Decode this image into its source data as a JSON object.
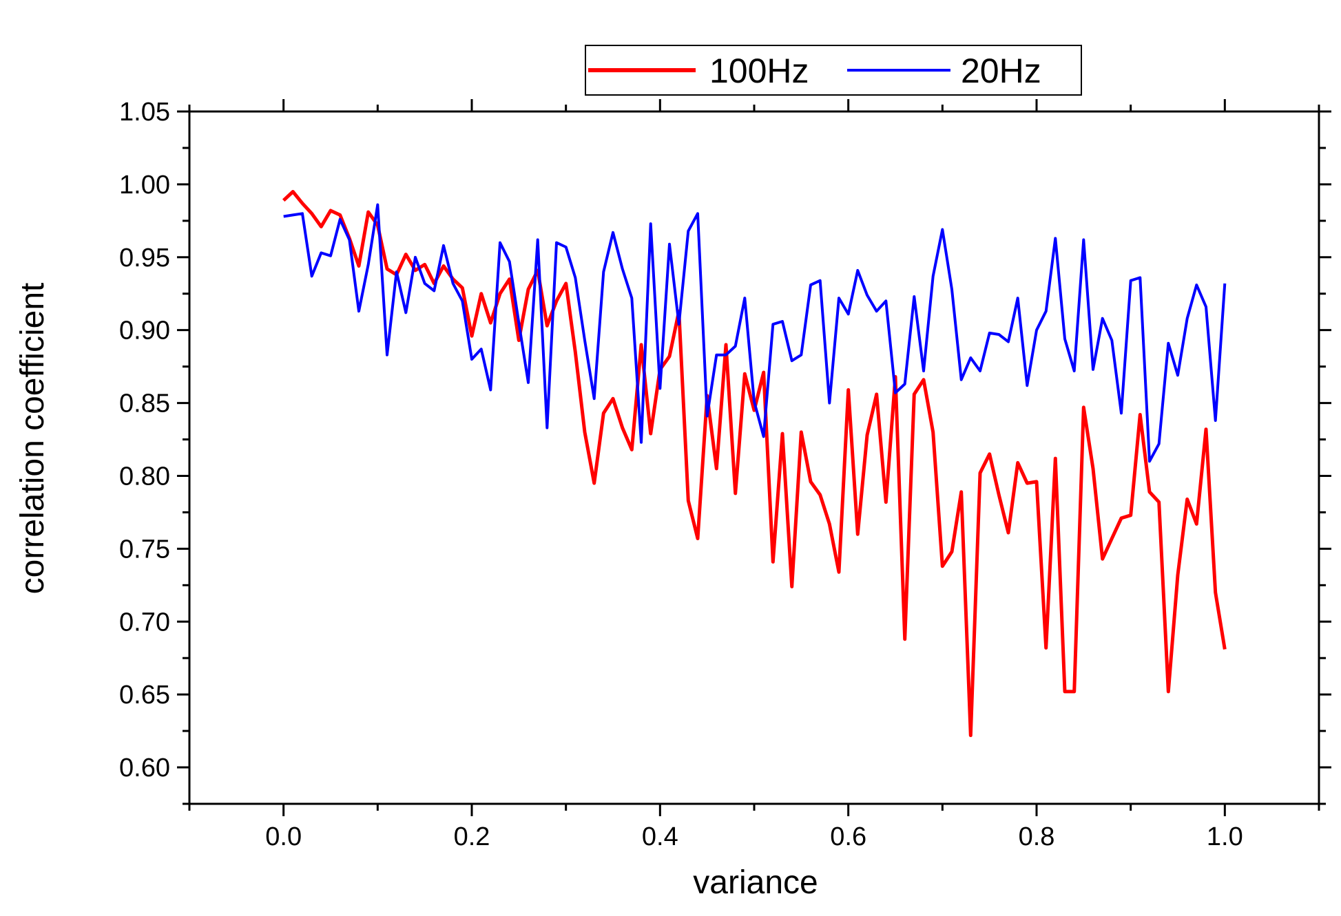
{
  "chart_data": {
    "type": "line",
    "title": "",
    "xlabel": "variance",
    "ylabel": "correlation coefficient",
    "xlim": [
      -0.1,
      1.1
    ],
    "ylim": [
      0.575,
      1.05
    ],
    "x_ticks": [
      0.0,
      0.2,
      0.4,
      0.6,
      0.8,
      1.0
    ],
    "x_tick_labels": [
      "0.0",
      "0.2",
      "0.4",
      "0.6",
      "0.8",
      "1.0"
    ],
    "y_ticks": [
      0.6,
      0.65,
      0.7,
      0.75,
      0.8,
      0.85,
      0.9,
      0.95,
      1.0,
      1.05
    ],
    "y_tick_labels": [
      "0.60",
      "0.65",
      "0.70",
      "0.75",
      "0.80",
      "0.85",
      "0.90",
      "0.95",
      "1.00",
      "1.05"
    ],
    "grid": false,
    "legend": {
      "position": "top-center",
      "entries": [
        "100Hz",
        "20Hz"
      ]
    },
    "x": [
      0.0,
      0.01,
      0.02,
      0.03,
      0.04,
      0.05,
      0.06,
      0.07,
      0.08,
      0.09,
      0.1,
      0.11,
      0.12,
      0.13,
      0.14,
      0.15,
      0.16,
      0.17,
      0.18,
      0.19,
      0.2,
      0.21,
      0.22,
      0.23,
      0.24,
      0.25,
      0.26,
      0.27,
      0.28,
      0.29,
      0.3,
      0.31,
      0.32,
      0.33,
      0.34,
      0.35,
      0.36,
      0.37,
      0.38,
      0.39,
      0.4,
      0.41,
      0.42,
      0.43,
      0.44,
      0.45,
      0.46,
      0.47,
      0.48,
      0.49,
      0.5,
      0.51,
      0.52,
      0.53,
      0.54,
      0.55,
      0.56,
      0.57,
      0.58,
      0.59,
      0.6,
      0.61,
      0.62,
      0.63,
      0.64,
      0.65,
      0.66,
      0.67,
      0.68,
      0.69,
      0.7,
      0.71,
      0.72,
      0.73,
      0.74,
      0.75,
      0.76,
      0.77,
      0.78,
      0.79,
      0.8,
      0.81,
      0.82,
      0.83,
      0.84,
      0.85,
      0.86,
      0.87,
      0.88,
      0.89,
      0.9,
      0.91,
      0.92,
      0.93,
      0.94,
      0.95,
      0.96,
      0.97,
      0.98,
      0.99,
      1.0
    ],
    "series": [
      {
        "name": "100Hz",
        "color": "#ff0000",
        "values": [
          0.989,
          0.995,
          0.987,
          0.98,
          0.971,
          0.982,
          0.979,
          0.963,
          0.944,
          0.981,
          0.972,
          0.942,
          0.938,
          0.952,
          0.941,
          0.945,
          0.932,
          0.944,
          0.935,
          0.929,
          0.896,
          0.925,
          0.905,
          0.925,
          0.935,
          0.893,
          0.928,
          0.941,
          0.903,
          0.92,
          0.932,
          0.885,
          0.83,
          0.795,
          0.843,
          0.853,
          0.833,
          0.818,
          0.89,
          0.829,
          0.873,
          0.882,
          0.913,
          0.783,
          0.757,
          0.855,
          0.805,
          0.89,
          0.788,
          0.87,
          0.845,
          0.871,
          0.741,
          0.829,
          0.724,
          0.83,
          0.796,
          0.787,
          0.767,
          0.734,
          0.859,
          0.76,
          0.828,
          0.856,
          0.782,
          0.868,
          0.688,
          0.856,
          0.866,
          0.83,
          0.738,
          0.748,
          0.789,
          0.622,
          0.802,
          0.815,
          0.787,
          0.761,
          0.809,
          0.795,
          0.796,
          0.682,
          0.812,
          0.652,
          0.652,
          0.847,
          0.805,
          0.743,
          0.757,
          0.771,
          0.773,
          0.842,
          0.789,
          0.782,
          0.652,
          0.732,
          0.784,
          0.767,
          0.832,
          0.72,
          0.681
        ]
      },
      {
        "name": "20Hz",
        "color": "#0000ff",
        "values": [
          0.978,
          0.979,
          0.98,
          0.937,
          0.953,
          0.951,
          0.976,
          0.962,
          0.913,
          0.945,
          0.986,
          0.883,
          0.94,
          0.912,
          0.95,
          0.932,
          0.927,
          0.958,
          0.932,
          0.92,
          0.88,
          0.887,
          0.859,
          0.96,
          0.947,
          0.905,
          0.864,
          0.962,
          0.833,
          0.96,
          0.957,
          0.936,
          0.893,
          0.853,
          0.94,
          0.967,
          0.942,
          0.922,
          0.823,
          0.973,
          0.86,
          0.959,
          0.904,
          0.968,
          0.98,
          0.841,
          0.883,
          0.883,
          0.889,
          0.922,
          0.851,
          0.827,
          0.904,
          0.906,
          0.879,
          0.883,
          0.931,
          0.934,
          0.85,
          0.922,
          0.911,
          0.941,
          0.924,
          0.913,
          0.92,
          0.857,
          0.863,
          0.923,
          0.872,
          0.937,
          0.969,
          0.928,
          0.866,
          0.881,
          0.872,
          0.898,
          0.897,
          0.892,
          0.922,
          0.862,
          0.9,
          0.913,
          0.963,
          0.894,
          0.872,
          0.962,
          0.873,
          0.908,
          0.893,
          0.843,
          0.934,
          0.936,
          0.81,
          0.822,
          0.891,
          0.869,
          0.908,
          0.931,
          0.916,
          0.838,
          0.932
        ]
      }
    ]
  }
}
